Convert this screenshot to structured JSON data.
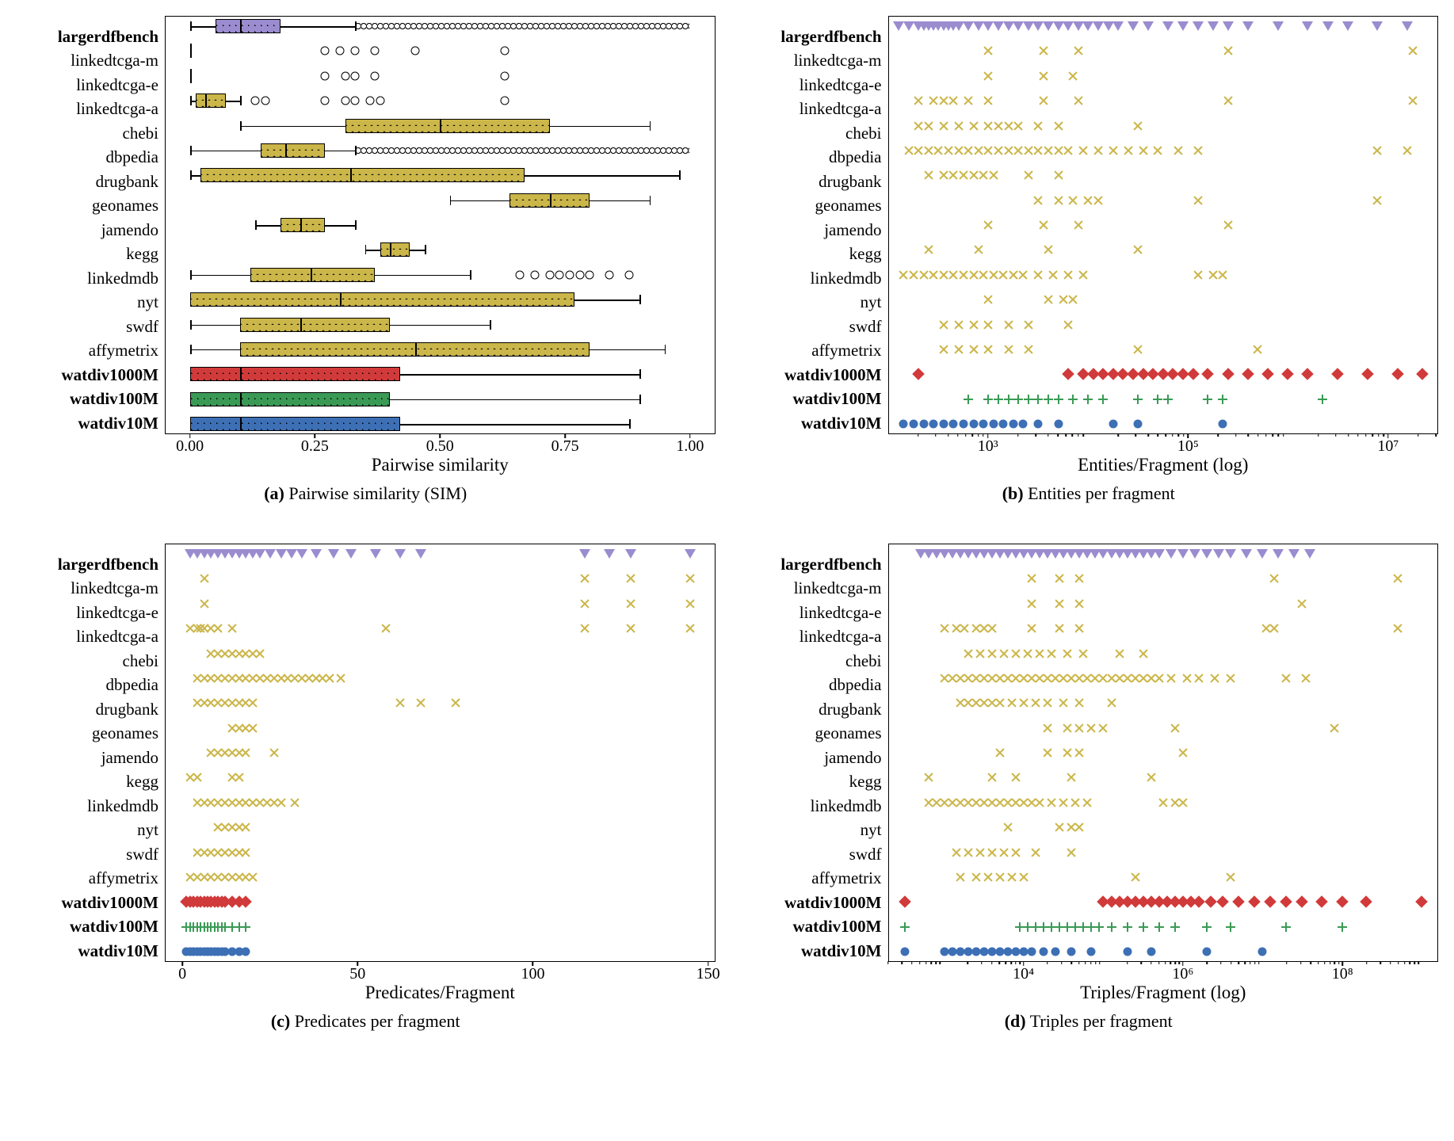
{
  "colors": {
    "purple": "#9a8ccf",
    "olive": "#cbb64a",
    "red": "#d13a3a",
    "green": "#3a9a55",
    "blue": "#3d6fb5",
    "black": "#000000",
    "border": "#000000",
    "bg": "#ffffff"
  },
  "series_meta": [
    {
      "key": "largerdfbench",
      "label": "largerdfbench",
      "bold": true,
      "marker": "tri",
      "color": "purple",
      "hatch": "d"
    },
    {
      "key": "linkedtcga-m",
      "label": "linkedtcga-m",
      "bold": false,
      "marker": "x",
      "color": "olive",
      "hatch": "x"
    },
    {
      "key": "linkedtcga-e",
      "label": "linkedtcga-e",
      "bold": false,
      "marker": "x",
      "color": "olive",
      "hatch": "x"
    },
    {
      "key": "linkedtcga-a",
      "label": "linkedtcga-a",
      "bold": false,
      "marker": "x",
      "color": "olive",
      "hatch": "x"
    },
    {
      "key": "chebi",
      "label": "chebi",
      "bold": false,
      "marker": "x",
      "color": "olive",
      "hatch": "x"
    },
    {
      "key": "dbpedia",
      "label": "dbpedia",
      "bold": false,
      "marker": "x",
      "color": "olive",
      "hatch": "x"
    },
    {
      "key": "drugbank",
      "label": "drugbank",
      "bold": false,
      "marker": "x",
      "color": "olive",
      "hatch": "x"
    },
    {
      "key": "geonames",
      "label": "geonames",
      "bold": false,
      "marker": "x",
      "color": "olive",
      "hatch": "x"
    },
    {
      "key": "jamendo",
      "label": "jamendo",
      "bold": false,
      "marker": "x",
      "color": "olive",
      "hatch": "x"
    },
    {
      "key": "kegg",
      "label": "kegg",
      "bold": false,
      "marker": "x",
      "color": "olive",
      "hatch": "x"
    },
    {
      "key": "linkedmdb",
      "label": "linkedmdb",
      "bold": false,
      "marker": "x",
      "color": "olive",
      "hatch": "x"
    },
    {
      "key": "nyt",
      "label": "nyt",
      "bold": false,
      "marker": "x",
      "color": "olive",
      "hatch": "x"
    },
    {
      "key": "swdf",
      "label": "swdf",
      "bold": false,
      "marker": "x",
      "color": "olive",
      "hatch": "x"
    },
    {
      "key": "affymetrix",
      "label": "affymetrix",
      "bold": false,
      "marker": "x",
      "color": "olive",
      "hatch": "x"
    },
    {
      "key": "watdiv1000M",
      "label": "watdiv1000M",
      "bold": true,
      "marker": "dia",
      "color": "red",
      "hatch": "d"
    },
    {
      "key": "watdiv100M",
      "label": "watdiv100M",
      "bold": true,
      "marker": "plus",
      "color": "green",
      "hatch": "d"
    },
    {
      "key": "watdiv10M",
      "label": "watdiv10M",
      "bold": true,
      "marker": "circ",
      "color": "blue",
      "hatch": "d"
    }
  ],
  "panel_a": {
    "type": "boxplot",
    "xlabel": "Pairwise similarity",
    "caption_prefix": "(a)",
    "caption": "Pairwise similarity (SIM)",
    "scale": "linear",
    "xlim": [
      -0.05,
      1.05
    ],
    "xticks": [
      0.0,
      0.25,
      0.5,
      0.75,
      1.0
    ],
    "xticklabels": [
      "0.00",
      "0.25",
      "0.50",
      "0.75",
      "1.00"
    ],
    "boxes": {
      "largerdfbench": {
        "wlo": 0.0,
        "q1": 0.05,
        "med": 0.1,
        "q3": 0.18,
        "whi": 0.33,
        "outliers": [],
        "outlier_band": [
          0.33,
          1.0
        ]
      },
      "linkedtcga-m": {
        "wlo": 0.0,
        "q1": 0.0,
        "med": 0.0,
        "q3": 0.0,
        "whi": 0.0,
        "outliers": [
          0.27,
          0.3,
          0.33,
          0.37,
          0.45,
          0.63
        ]
      },
      "linkedtcga-e": {
        "wlo": 0.0,
        "q1": 0.0,
        "med": 0.0,
        "q3": 0.0,
        "whi": 0.0,
        "outliers": [
          0.27,
          0.31,
          0.33,
          0.37,
          0.63
        ]
      },
      "linkedtcga-a": {
        "wlo": 0.0,
        "q1": 0.01,
        "med": 0.03,
        "q3": 0.07,
        "whi": 0.1,
        "outliers": [
          0.13,
          0.15,
          0.27,
          0.31,
          0.33,
          0.36,
          0.38,
          0.63
        ]
      },
      "chebi": {
        "wlo": 0.1,
        "q1": 0.31,
        "med": 0.5,
        "q3": 0.72,
        "whi": 0.92,
        "outliers": []
      },
      "dbpedia": {
        "wlo": 0.0,
        "q1": 0.14,
        "med": 0.19,
        "q3": 0.27,
        "whi": 0.33,
        "outliers": [],
        "outlier_band": [
          0.33,
          1.0
        ]
      },
      "drugbank": {
        "wlo": 0.0,
        "q1": 0.02,
        "med": 0.32,
        "q3": 0.67,
        "whi": 0.98,
        "outliers": []
      },
      "geonames": {
        "wlo": 0.52,
        "q1": 0.64,
        "med": 0.72,
        "q3": 0.8,
        "whi": 0.92,
        "outliers": []
      },
      "jamendo": {
        "wlo": 0.13,
        "q1": 0.18,
        "med": 0.22,
        "q3": 0.27,
        "whi": 0.33,
        "outliers": []
      },
      "kegg": {
        "wlo": 0.35,
        "q1": 0.38,
        "med": 0.4,
        "q3": 0.44,
        "whi": 0.47,
        "outliers": []
      },
      "linkedmdb": {
        "wlo": 0.0,
        "q1": 0.12,
        "med": 0.24,
        "q3": 0.37,
        "whi": 0.56,
        "outliers": [
          0.66,
          0.69,
          0.72,
          0.74,
          0.76,
          0.78,
          0.8,
          0.84,
          0.88
        ]
      },
      "nyt": {
        "wlo": 0.0,
        "q1": 0.0,
        "med": 0.3,
        "q3": 0.77,
        "whi": 0.9,
        "outliers": []
      },
      "swdf": {
        "wlo": 0.0,
        "q1": 0.1,
        "med": 0.22,
        "q3": 0.4,
        "whi": 0.6,
        "outliers": []
      },
      "affymetrix": {
        "wlo": 0.0,
        "q1": 0.1,
        "med": 0.45,
        "q3": 0.8,
        "whi": 0.95,
        "outliers": []
      },
      "watdiv1000M": {
        "wlo": 0.0,
        "q1": 0.0,
        "med": 0.1,
        "q3": 0.42,
        "whi": 0.9,
        "outliers": []
      },
      "watdiv100M": {
        "wlo": 0.0,
        "q1": 0.0,
        "med": 0.1,
        "q3": 0.4,
        "whi": 0.9,
        "outliers": []
      },
      "watdiv10M": {
        "wlo": 0.0,
        "q1": 0.0,
        "med": 0.1,
        "q3": 0.42,
        "whi": 0.88,
        "outliers": []
      }
    }
  },
  "panel_b": {
    "type": "strip",
    "xlabel": "Entities/Fragment (log)",
    "caption_prefix": "(b)",
    "caption": "Entities per fragment",
    "scale": "log",
    "log_range": [
      2,
      7.5
    ],
    "xticks_log": [
      3,
      5,
      7
    ],
    "xticklabels": [
      "10³",
      "10⁵",
      "10⁷"
    ],
    "points": {
      "largerdfbench": [
        2.1,
        2.2,
        2.3,
        2.35,
        2.4,
        2.45,
        2.5,
        2.55,
        2.6,
        2.65,
        2.7,
        2.8,
        2.9,
        3.0,
        3.1,
        3.2,
        3.3,
        3.4,
        3.5,
        3.6,
        3.7,
        3.8,
        3.9,
        4.0,
        4.1,
        4.2,
        4.3,
        4.45,
        4.6,
        4.8,
        4.95,
        5.1,
        5.25,
        5.4,
        5.6,
        5.9,
        6.2,
        6.4,
        6.6,
        6.9,
        7.2
      ],
      "linkedtcga-m": [
        3.0,
        3.55,
        3.9,
        5.4,
        7.25
      ],
      "linkedtcga-e": [
        3.0,
        3.55,
        3.85
      ],
      "linkedtcga-a": [
        2.3,
        2.45,
        2.55,
        2.65,
        2.8,
        3.0,
        3.55,
        3.9,
        5.4,
        7.25
      ],
      "chebi": [
        2.3,
        2.4,
        2.55,
        2.7,
        2.85,
        3.0,
        3.1,
        3.2,
        3.3,
        3.5,
        3.7,
        4.5
      ],
      "dbpedia": [
        2.2,
        2.3,
        2.4,
        2.5,
        2.6,
        2.7,
        2.8,
        2.9,
        3.0,
        3.1,
        3.2,
        3.3,
        3.4,
        3.5,
        3.6,
        3.7,
        3.8,
        3.95,
        4.1,
        4.25,
        4.4,
        4.55,
        4.7,
        4.9,
        5.1,
        6.9,
        7.2
      ],
      "drugbank": [
        2.4,
        2.55,
        2.65,
        2.75,
        2.85,
        2.95,
        3.05,
        3.4,
        3.7
      ],
      "geonames": [
        3.5,
        3.7,
        3.85,
        4.0,
        4.1,
        5.1,
        6.9
      ],
      "jamendo": [
        3.0,
        3.55,
        3.9,
        5.4
      ],
      "kegg": [
        2.4,
        2.9,
        3.6,
        4.5
      ],
      "linkedmdb": [
        2.15,
        2.25,
        2.35,
        2.45,
        2.55,
        2.65,
        2.75,
        2.85,
        2.95,
        3.05,
        3.15,
        3.25,
        3.35,
        3.5,
        3.65,
        3.8,
        3.95,
        5.1,
        5.25,
        5.35
      ],
      "nyt": [
        3.0,
        3.6,
        3.75,
        3.85
      ],
      "swdf": [
        2.55,
        2.7,
        2.85,
        3.0,
        3.2,
        3.4,
        3.8
      ],
      "affymetrix": [
        2.55,
        2.7,
        2.85,
        3.0,
        3.2,
        3.4,
        4.5,
        5.7
      ],
      "watdiv1000M": [
        2.3,
        3.8,
        3.95,
        4.05,
        4.15,
        4.25,
        4.35,
        4.45,
        4.55,
        4.65,
        4.75,
        4.85,
        4.95,
        5.05,
        5.2,
        5.4,
        5.6,
        5.8,
        6.0,
        6.2,
        6.5,
        6.8,
        7.1,
        7.35
      ],
      "watdiv100M": [
        2.8,
        3.0,
        3.1,
        3.2,
        3.3,
        3.4,
        3.5,
        3.6,
        3.7,
        3.85,
        4.0,
        4.15,
        4.5,
        4.7,
        4.8,
        5.2,
        5.35,
        6.35
      ],
      "watdiv10M": [
        2.15,
        2.25,
        2.35,
        2.45,
        2.55,
        2.65,
        2.75,
        2.85,
        2.95,
        3.05,
        3.15,
        3.25,
        3.35,
        3.5,
        3.7,
        4.25,
        4.5,
        5.35
      ]
    }
  },
  "panel_c": {
    "type": "strip",
    "xlabel": "Predicates/Fragment",
    "caption_prefix": "(c)",
    "caption": "Predicates per fragment",
    "scale": "linear",
    "xlim": [
      -5,
      152
    ],
    "xticks": [
      0,
      50,
      100,
      150
    ],
    "xticklabels": [
      "0",
      "50",
      "100",
      "150"
    ],
    "points": {
      "largerdfbench": [
        2,
        4,
        6,
        8,
        10,
        12,
        14,
        16,
        18,
        20,
        22,
        25,
        28,
        31,
        34,
        38,
        43,
        48,
        55,
        62,
        68,
        115,
        122,
        128,
        145
      ],
      "linkedtcga-m": [
        6,
        115,
        128,
        145
      ],
      "linkedtcga-e": [
        6,
        115,
        128,
        145
      ],
      "linkedtcga-a": [
        2,
        4,
        5,
        6,
        8,
        10,
        14,
        58,
        115,
        128,
        145
      ],
      "chebi": [
        8,
        10,
        12,
        14,
        16,
        18,
        20,
        22
      ],
      "dbpedia": [
        4,
        6,
        8,
        10,
        12,
        14,
        16,
        18,
        20,
        22,
        24,
        26,
        28,
        30,
        32,
        34,
        36,
        38,
        40,
        42,
        45
      ],
      "drugbank": [
        4,
        6,
        8,
        10,
        12,
        14,
        16,
        18,
        20,
        62,
        68,
        78
      ],
      "geonames": [
        14,
        16,
        18,
        20
      ],
      "jamendo": [
        8,
        10,
        12,
        14,
        16,
        18,
        26
      ],
      "kegg": [
        2,
        4,
        14,
        16
      ],
      "linkedmdb": [
        4,
        6,
        8,
        10,
        12,
        14,
        16,
        18,
        20,
        22,
        24,
        26,
        28,
        32
      ],
      "nyt": [
        10,
        12,
        14,
        16,
        18
      ],
      "swdf": [
        4,
        6,
        8,
        10,
        12,
        14,
        16,
        18
      ],
      "affymetrix": [
        2,
        4,
        6,
        8,
        10,
        12,
        14,
        16,
        18,
        20
      ],
      "watdiv1000M": [
        1,
        2,
        3,
        4,
        5,
        6,
        7,
        8,
        9,
        10,
        11,
        12,
        14,
        16,
        18
      ],
      "watdiv100M": [
        1,
        2,
        3,
        4,
        5,
        6,
        7,
        8,
        9,
        10,
        11,
        12,
        14,
        16,
        18
      ],
      "watdiv10M": [
        1,
        2,
        3,
        4,
        5,
        6,
        7,
        8,
        9,
        10,
        11,
        12,
        14,
        16,
        18
      ]
    }
  },
  "panel_d": {
    "type": "strip",
    "xlabel": "Triples/Fragment (log)",
    "caption_prefix": "(d)",
    "caption": "Triples per fragment",
    "scale": "log",
    "log_range": [
      2.3,
      9.2
    ],
    "xticks_log": [
      4,
      6,
      8
    ],
    "xticklabels": [
      "10⁴",
      "10⁶",
      "10⁸"
    ],
    "points": {
      "largerdfbench": [
        2.7,
        2.8,
        2.9,
        3.0,
        3.1,
        3.2,
        3.3,
        3.4,
        3.5,
        3.6,
        3.7,
        3.8,
        3.9,
        4.0,
        4.1,
        4.2,
        4.3,
        4.4,
        4.5,
        4.6,
        4.7,
        4.8,
        4.9,
        5.0,
        5.1,
        5.2,
        5.3,
        5.4,
        5.5,
        5.6,
        5.7,
        5.85,
        6.0,
        6.15,
        6.3,
        6.45,
        6.6,
        6.8,
        7.0,
        7.2,
        7.4,
        7.6
      ],
      "linkedtcga-m": [
        4.1,
        4.45,
        4.7,
        7.15,
        8.7
      ],
      "linkedtcga-e": [
        4.1,
        4.45,
        4.7,
        7.5
      ],
      "linkedtcga-a": [
        3.0,
        3.15,
        3.25,
        3.4,
        3.5,
        3.6,
        4.1,
        4.45,
        4.7,
        7.05,
        7.15,
        8.7
      ],
      "chebi": [
        3.3,
        3.45,
        3.6,
        3.75,
        3.9,
        4.05,
        4.2,
        4.35,
        4.55,
        4.75,
        5.2,
        5.5
      ],
      "dbpedia": [
        3.0,
        3.1,
        3.2,
        3.3,
        3.4,
        3.5,
        3.6,
        3.7,
        3.8,
        3.9,
        4.0,
        4.1,
        4.2,
        4.3,
        4.4,
        4.5,
        4.6,
        4.7,
        4.8,
        4.9,
        5.0,
        5.1,
        5.2,
        5.3,
        5.4,
        5.5,
        5.6,
        5.7,
        5.85,
        6.05,
        6.2,
        6.4,
        6.6,
        7.3,
        7.55
      ],
      "drugbank": [
        3.2,
        3.3,
        3.4,
        3.5,
        3.6,
        3.7,
        3.85,
        4.0,
        4.15,
        4.3,
        4.5,
        4.7,
        5.1
      ],
      "geonames": [
        4.3,
        4.55,
        4.7,
        4.85,
        5.0,
        5.9,
        7.9
      ],
      "jamendo": [
        3.7,
        4.3,
        4.55,
        4.7,
        6.0
      ],
      "kegg": [
        2.8,
        3.6,
        3.9,
        4.6,
        5.6
      ],
      "linkedmdb": [
        2.8,
        2.9,
        3.0,
        3.1,
        3.2,
        3.3,
        3.4,
        3.5,
        3.6,
        3.7,
        3.8,
        3.9,
        4.0,
        4.1,
        4.2,
        4.35,
        4.5,
        4.65,
        4.8,
        5.75,
        5.9,
        6.0
      ],
      "nyt": [
        3.8,
        4.45,
        4.6,
        4.7
      ],
      "swdf": [
        3.15,
        3.3,
        3.45,
        3.6,
        3.75,
        3.9,
        4.15,
        4.6
      ],
      "affymetrix": [
        3.2,
        3.4,
        3.55,
        3.7,
        3.85,
        4.0,
        5.4,
        6.6
      ],
      "watdiv1000M": [
        2.5,
        5.0,
        5.1,
        5.2,
        5.3,
        5.4,
        5.5,
        5.6,
        5.7,
        5.8,
        5.9,
        6.0,
        6.1,
        6.2,
        6.35,
        6.5,
        6.7,
        6.9,
        7.1,
        7.3,
        7.5,
        7.75,
        8.0,
        8.3,
        9.0
      ],
      "watdiv100M": [
        2.5,
        3.95,
        4.05,
        4.15,
        4.25,
        4.35,
        4.45,
        4.55,
        4.65,
        4.75,
        4.85,
        4.95,
        5.1,
        5.3,
        5.5,
        5.7,
        5.9,
        6.3,
        6.6,
        7.3,
        8.0
      ],
      "watdiv10M": [
        2.5,
        3.0,
        3.1,
        3.2,
        3.3,
        3.4,
        3.5,
        3.6,
        3.7,
        3.8,
        3.9,
        4.0,
        4.1,
        4.25,
        4.4,
        4.6,
        4.85,
        5.3,
        5.6,
        6.3,
        7.0
      ]
    }
  }
}
